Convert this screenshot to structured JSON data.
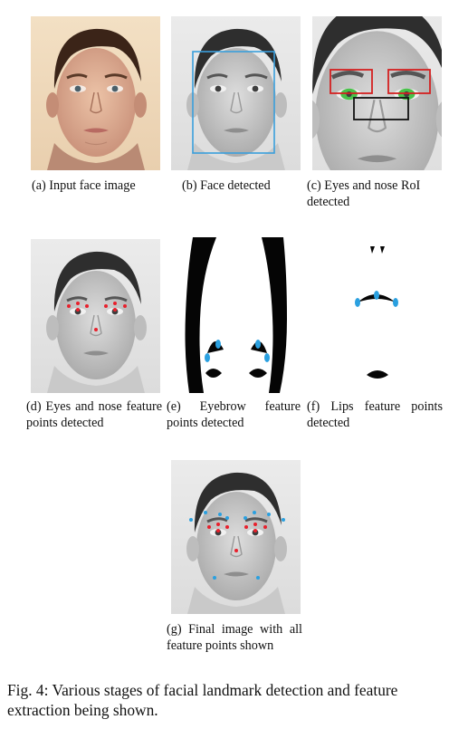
{
  "figure": {
    "caption": "Fig. 4: Various stages of facial landmark detection and feature extraction being shown.",
    "colors": {
      "background": "#ffffff",
      "face_box": "#3a9fdc",
      "eye_box": "#d42020",
      "nose_box": "#111111",
      "iris_fill": "#49c24a",
      "landmark_red": "#e8202c",
      "landmark_blue": "#2aa0e0"
    },
    "panels": [
      {
        "label": "(a) Input face image"
      },
      {
        "label": "(b) Face detected"
      },
      {
        "label": "(c) Eyes and nose RoI detected"
      },
      {
        "label": "(d) Eyes and nose feature points detected"
      },
      {
        "label": "(e) Eyebrow feature points detected"
      },
      {
        "label": "(f) Lips feature points detected"
      },
      {
        "label": "(g) Final image with all feature points shown"
      }
    ]
  }
}
